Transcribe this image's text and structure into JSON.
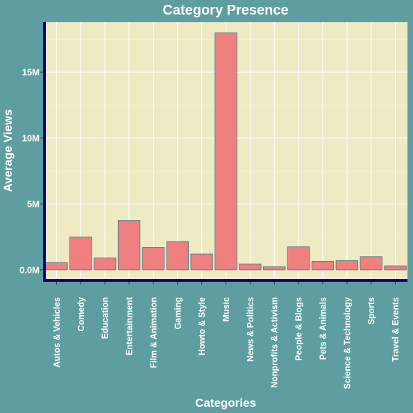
{
  "chart_data": {
    "type": "bar",
    "title": "Category Presence",
    "xlabel": "Categories",
    "ylabel": "Average Views",
    "categories": [
      "Autos & Vehicles",
      "Comedy",
      "Education",
      "Entertainment",
      "Film & Animation",
      "Gaming",
      "Howto & Style",
      "Music",
      "News & Politics",
      "Nonprofits & Activism",
      "People & Blogs",
      "Pets & Animals",
      "Science & Technology",
      "Sports",
      "Travel & Events"
    ],
    "values": [
      550000,
      2500000,
      900000,
      3750000,
      1700000,
      2150000,
      1200000,
      18000000,
      450000,
      250000,
      1750000,
      650000,
      700000,
      1000000,
      300000
    ],
    "ylim": [
      -800000,
      18800000
    ],
    "yticks": [
      0,
      5000000,
      10000000,
      15000000
    ],
    "ytick_labels": [
      "0.0M",
      "5M",
      "10M",
      "15M"
    ],
    "grid": true,
    "colors": {
      "background": "#5f9ea0",
      "panel": "#eeeac4",
      "bar_fill": "#f08080",
      "bar_edge": "#5a7f7f",
      "axis_line": "#00008b",
      "grid": "#ffffff",
      "text": "#ffffff"
    }
  }
}
